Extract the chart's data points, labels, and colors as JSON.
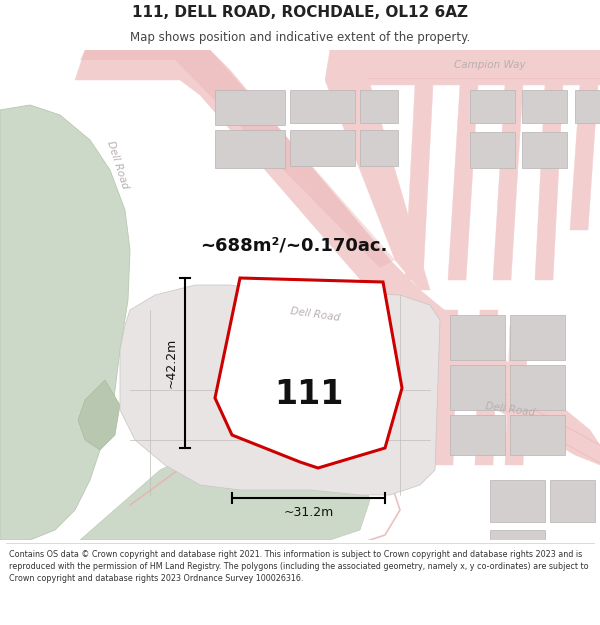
{
  "title": "111, DELL ROAD, ROCHDALE, OL12 6AZ",
  "subtitle": "Map shows position and indicative extent of the property.",
  "area_label": "~688m²/~0.170ac.",
  "property_number": "111",
  "dim_height": "~42.2m",
  "dim_width": "~31.2m",
  "footer": "Contains OS data © Crown copyright and database right 2021. This information is subject to Crown copyright and database rights 2023 and is reproduced with the permission of HM Land Registry. The polygons (including the associated geometry, namely x, y co-ordinates) are subject to Crown copyright and database rights 2023 Ordnance Survey 100026316.",
  "bg_color": "#ffffff",
  "map_bg": "#f7f3f3",
  "green_color": "#cdd9c8",
  "road_color": "#f2cece",
  "road_line_color": "#e8b0b0",
  "building_color": "#d4cfcf",
  "building_edge": "#b8b3b3",
  "property_fill": "#f0eded",
  "property_edge": "#cc0000",
  "road_label_color": "#b8b0b0",
  "title_color": "#222222",
  "text_color": "#444444"
}
